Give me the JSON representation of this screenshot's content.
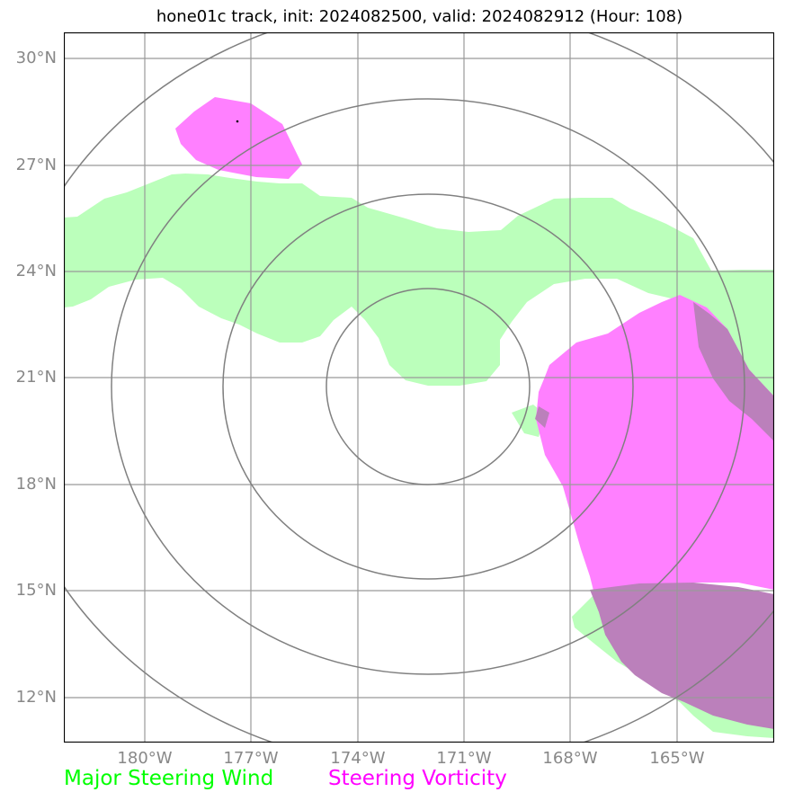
{
  "title": "hone01c track, init: 2024082500, valid: 2024082912 (Hour: 108)",
  "axes": {
    "lat_ticks": [
      "30°N",
      "27°N",
      "24°N",
      "21°N",
      "18°N",
      "15°N",
      "12°N"
    ],
    "lon_ticks": [
      "180°W",
      "177°W",
      "174°W",
      "171°W",
      "168°W",
      "165°W"
    ]
  },
  "legend": [
    {
      "label": "Major Steering Wind",
      "color": "#00ff00"
    },
    {
      "label": "Steering Vorticity",
      "color": "#ff00ff"
    }
  ],
  "colors": {
    "steering_wind_fill": "#bbffbb",
    "steering_vorticity_fill": "#ff80ff",
    "overlap_fill": "#bb80bb",
    "grid": "#999999",
    "range_rings": "#808080"
  },
  "map": {
    "projection": "lat-lon",
    "lon_range": [
      "182.3°W",
      "162.3°W"
    ],
    "lat_range": [
      "10.7°N",
      "30.7°N"
    ],
    "range_ring_center": {
      "lat": 20.75,
      "lon": -172.0
    },
    "range_ring_count": 4
  }
}
